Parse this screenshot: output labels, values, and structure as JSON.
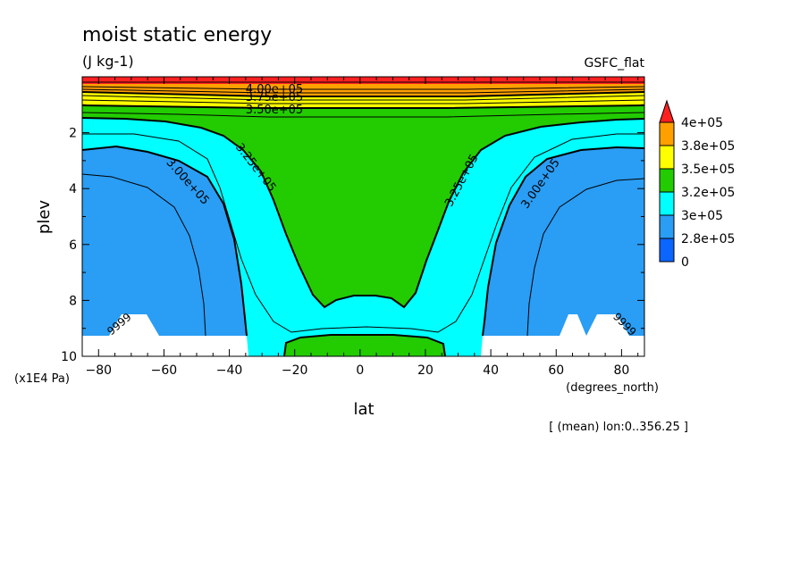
{
  "chart_data": {
    "type": "contour",
    "title": "moist static energy",
    "units": "(J kg-1)",
    "dataset": "GSFC_flat",
    "xlabel": "lat",
    "xunits": "(degrees_north)",
    "ylabel": "plev",
    "yunits": "(x1E4 Pa)",
    "subset_note": "[ (mean) lon:0..356.25 ]",
    "xlim": [
      -85,
      87
    ],
    "ylim": [
      10,
      0
    ],
    "x_ticks": [
      -80,
      -60,
      -40,
      -20,
      0,
      20,
      40,
      60,
      80
    ],
    "y_ticks": [
      2,
      4,
      6,
      8,
      10
    ],
    "y_tick_labels": [
      "2",
      "4",
      "6",
      "8",
      "10"
    ],
    "x_tick_labels": [
      "−80",
      "−60",
      "−40",
      "−20",
      "0",
      "20",
      "40",
      "60",
      "80"
    ],
    "levels": [
      0,
      280000,
      300000,
      320000,
      350000,
      380000,
      400000
    ],
    "colorbar_labels": [
      "4e+05",
      "3.8e+05",
      "3.5e+05",
      "3.2e+05",
      "3e+05",
      "2.8e+05",
      "0"
    ],
    "colorbar_colors": [
      "#ff2020",
      "#ffa000",
      "#ffff00",
      "#22cc00",
      "#00ffff",
      "#2a9df4",
      "#0b66ff"
    ],
    "contour_labels": [
      "4.00e+05",
      "3.75e+05",
      "3.50e+05",
      "3.25e+05",
      "3.00e+05",
      "3.25e+05",
      "3.00e+05",
      "9999",
      "9999"
    ],
    "colors": {
      "red": "#ff2020",
      "orange": "#ffa000",
      "yellow": "#ffff00",
      "green": "#22cc00",
      "cyan": "#00ffff",
      "mid_blue": "#2a9df4",
      "dark_blue": "#0b66ff",
      "missing": "#ffffff"
    }
  }
}
